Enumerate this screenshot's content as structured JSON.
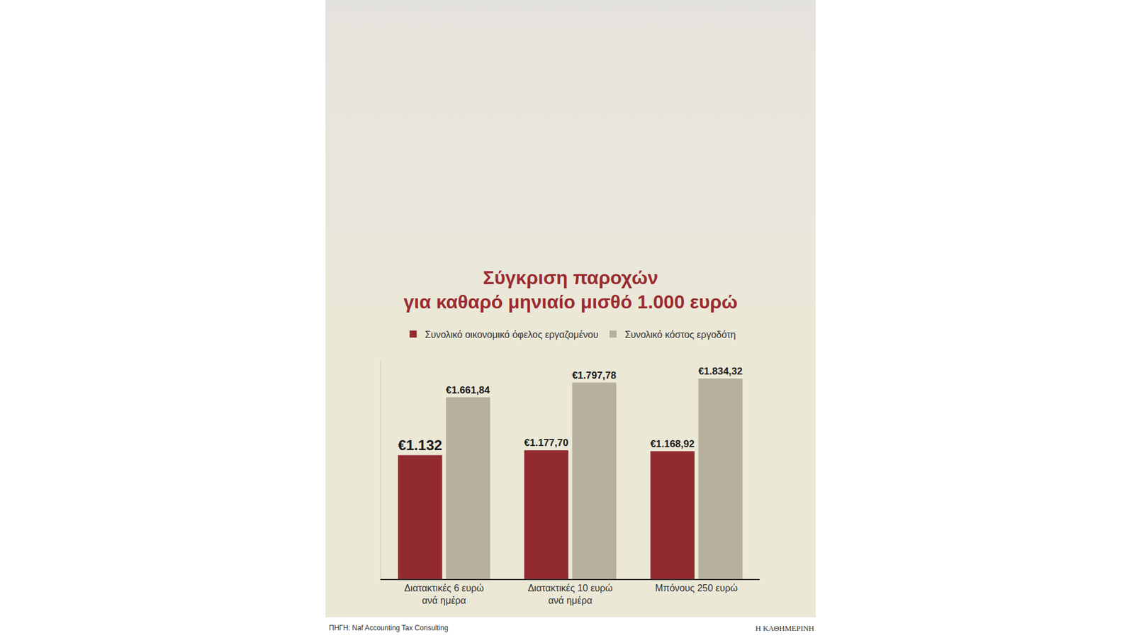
{
  "chart_data": {
    "type": "bar",
    "title": "Σύγκριση παροχών για καθαρό μηνιαίο μισθό 1.000 ευρώ",
    "categories": [
      "Διατακτικές 6 ευρώ ανά ημέρα",
      "Διατακτικές 10 ευρώ ανά ημέρα",
      "Μπόνους 250 ευρώ"
    ],
    "series": [
      {
        "name": "Συνολικό οικονομικό όφελος εργαζομένου",
        "color": "#922b30",
        "values": [
          1132,
          1177.7,
          1168.92
        ],
        "value_labels": [
          "€1.132",
          "€1.177,70",
          "€1.168,92"
        ]
      },
      {
        "name": "Συνολικό κόστος εργοδότη",
        "color": "#b8b09e",
        "values": [
          1661.84,
          1797.78,
          1834.32
        ],
        "value_labels": [
          "€1.661,84",
          "€1.797,78",
          "€1.834,32"
        ]
      }
    ],
    "ylim": [
      0,
      2000
    ],
    "yticks": [],
    "tick_labels": "x",
    "data_labels": true,
    "legend": "top",
    "grid": false,
    "annotations": [
      "ΠΗΓΗ: Naf Accounting Tax Consulting",
      "Η ΚΑΘΗΜΕΡΙΝΗ"
    ]
  }
}
